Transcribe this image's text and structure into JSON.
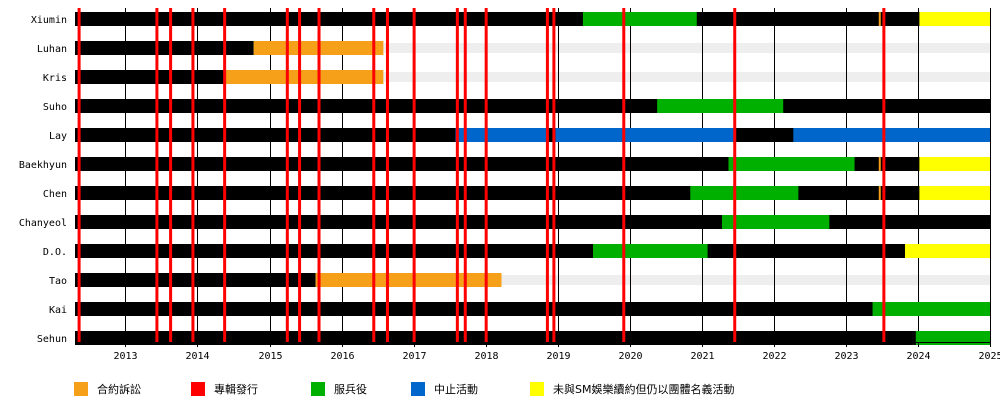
{
  "chart_data": {
    "type": "timeline",
    "xlim": [
      2012.3,
      2025.0
    ],
    "x_ticks": [
      "2013",
      "2014",
      "2015",
      "2016",
      "2017",
      "2018",
      "2019",
      "2020",
      "2021",
      "2022",
      "2023",
      "2024",
      "2025"
    ],
    "members": [
      {
        "name": "Xiumin",
        "active": [
          2012.3,
          2025.0
        ],
        "segments": [
          {
            "start": 2019.35,
            "end": 2020.93,
            "status": "military"
          },
          {
            "start": 2024.02,
            "end": 2025.0,
            "status": "non_sm"
          }
        ]
      },
      {
        "name": "Luhan",
        "active": [
          2012.3,
          2014.78
        ],
        "segments": [
          {
            "start": 2014.78,
            "end": 2016.58,
            "status": "lawsuit"
          }
        ]
      },
      {
        "name": "Kris",
        "active": [
          2012.3,
          2014.37
        ],
        "segments": [
          {
            "start": 2014.37,
            "end": 2016.58,
            "status": "lawsuit"
          }
        ]
      },
      {
        "name": "Suho",
        "active": [
          2012.3,
          2025.0
        ],
        "segments": [
          {
            "start": 2020.38,
            "end": 2022.13,
            "status": "military"
          }
        ]
      },
      {
        "name": "Lay",
        "active": [
          2012.3,
          2025.0
        ],
        "segments": [
          {
            "start": 2017.58,
            "end": 2018.86,
            "status": "hiatus"
          },
          {
            "start": 2018.97,
            "end": 2021.44,
            "status": "hiatus"
          },
          {
            "start": 2022.27,
            "end": 2025.0,
            "status": "hiatus"
          }
        ]
      },
      {
        "name": "Baekhyun",
        "active": [
          2012.3,
          2025.0
        ],
        "segments": [
          {
            "start": 2021.37,
            "end": 2023.12,
            "status": "military"
          },
          {
            "start": 2024.02,
            "end": 2025.0,
            "status": "non_sm"
          }
        ]
      },
      {
        "name": "Chen",
        "active": [
          2012.3,
          2025.0
        ],
        "segments": [
          {
            "start": 2020.84,
            "end": 2022.34,
            "status": "military"
          },
          {
            "start": 2024.02,
            "end": 2025.0,
            "status": "non_sm"
          }
        ]
      },
      {
        "name": "Chanyeol",
        "active": [
          2012.3,
          2025.0
        ],
        "segments": [
          {
            "start": 2021.28,
            "end": 2022.77,
            "status": "military"
          }
        ]
      },
      {
        "name": "D.O.",
        "active": [
          2012.3,
          2025.0
        ],
        "segments": [
          {
            "start": 2019.49,
            "end": 2021.08,
            "status": "military"
          },
          {
            "start": 2023.82,
            "end": 2025.0,
            "status": "non_sm"
          }
        ]
      },
      {
        "name": "Tao",
        "active": [
          2012.3,
          2015.64
        ],
        "segments": [
          {
            "start": 2015.64,
            "end": 2018.22,
            "status": "lawsuit"
          }
        ]
      },
      {
        "name": "Kai",
        "active": [
          2012.3,
          2025.0
        ],
        "segments": [
          {
            "start": 2023.37,
            "end": 2025.0,
            "status": "military"
          }
        ]
      },
      {
        "name": "Sehun",
        "active": [
          2012.3,
          2025.0
        ],
        "segments": [
          {
            "start": 2023.97,
            "end": 2025.0,
            "status": "military"
          }
        ]
      }
    ],
    "album_releases": [
      2012.35,
      2013.43,
      2013.62,
      2013.93,
      2014.37,
      2015.24,
      2015.41,
      2015.68,
      2016.44,
      2016.63,
      2017.0,
      2017.6,
      2017.71,
      2018.0,
      2018.85,
      2018.94,
      2019.91,
      2021.45,
      2023.52
    ],
    "minor_markers": [
      2023.47
    ],
    "legend": [
      {
        "key": "lawsuit",
        "label": "合約訴訟",
        "color": "#f6a01a"
      },
      {
        "key": "album",
        "label": "專輯發行",
        "color": "#ff0000"
      },
      {
        "key": "military",
        "label": "服兵役",
        "color": "#00b000"
      },
      {
        "key": "hiatus",
        "label": "中止活動",
        "color": "#0066cc"
      },
      {
        "key": "non_sm",
        "label": "未與SM娛樂續約但仍以團體名義活動",
        "color": "#ffff00"
      }
    ],
    "colors": {
      "active": "#000000",
      "band": "#eeeeee",
      "grid": "#000000",
      "album_marker": "#ff0000"
    }
  }
}
